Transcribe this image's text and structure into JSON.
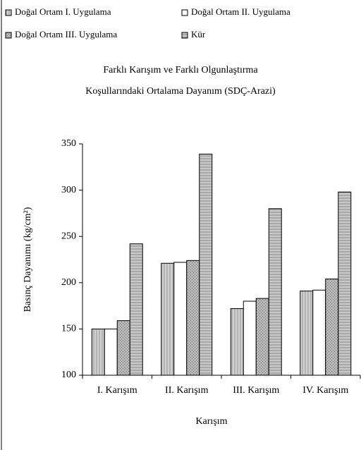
{
  "chart_data": {
    "type": "bar",
    "title": [
      "Farklı Karışım ve Farklı Olgunlaştırma",
      "Koşullarındaki Ortalama Dayanım (SDÇ-Arazi)"
    ],
    "x_label": "Karışım",
    "y_label": "Basınç Dayanımı (kg/cm²)",
    "categories": [
      "I. Karışım",
      "II. Karışım",
      "III. Karışım",
      "IV. Karışım"
    ],
    "series": [
      {
        "name": "Doğal Ortam I. Uygulama",
        "color": "#d0d0d0",
        "values": [
          150,
          221,
          172,
          191
        ]
      },
      {
        "name": "Doğal Ortam II. Uygulama",
        "color": "#ffffff",
        "values": [
          150,
          222,
          180,
          192
        ]
      },
      {
        "name": "Doğal Ortam III. Uygulama",
        "color": "#b8b8b8",
        "values": [
          159,
          224,
          183,
          204
        ]
      },
      {
        "name": "Kür",
        "color": "#c8c8c8",
        "values": [
          242,
          339,
          280,
          298
        ]
      }
    ],
    "ylim": [
      100,
      350
    ],
    "yticks": [
      100,
      150,
      200,
      250,
      300,
      350
    ],
    "grid": false
  }
}
